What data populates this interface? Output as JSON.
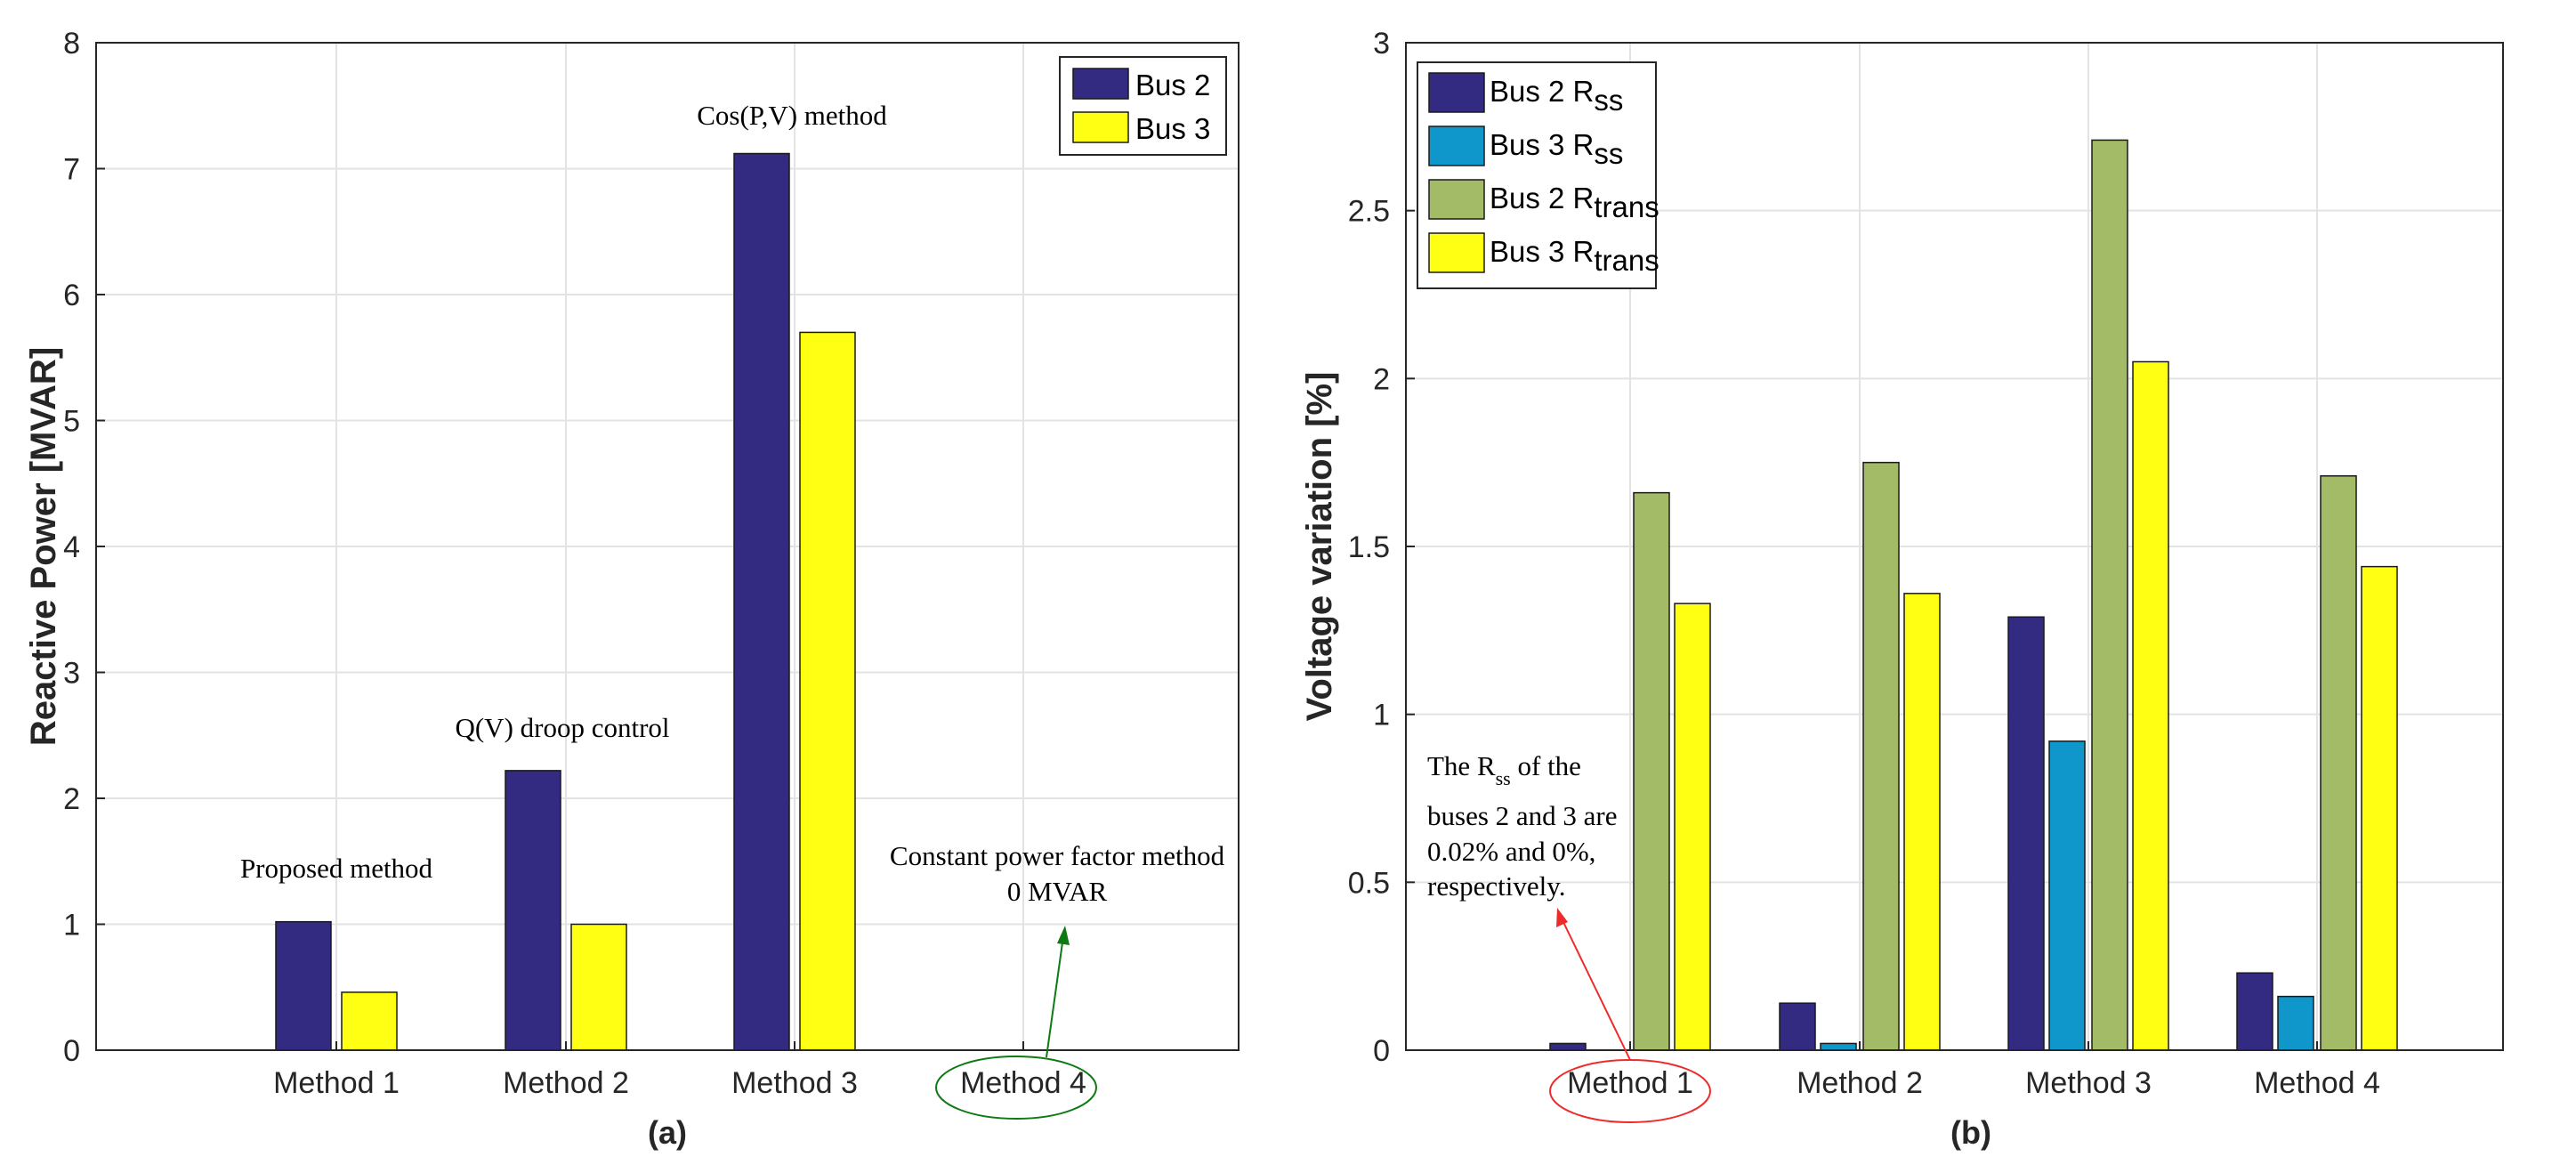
{
  "chart_data": [
    {
      "type": "bar",
      "panel_label": "(a)",
      "title": "",
      "xlabel": "",
      "ylabel": "Reactive Power [MVAR]",
      "ylim": [
        0,
        8
      ],
      "yticks": [
        "0",
        "1",
        "2",
        "3",
        "4",
        "5",
        "6",
        "7",
        "8"
      ],
      "grid": true,
      "categories": [
        "Method 1",
        "Method 2",
        "Method 3",
        "Method 4"
      ],
      "series": [
        {
          "name": "Bus 2",
          "color": "#332a82",
          "values": [
            1.02,
            2.22,
            7.12,
            0
          ]
        },
        {
          "name": "Bus 3",
          "color": "#ffff14",
          "values": [
            0.46,
            1.0,
            5.7,
            0
          ]
        }
      ],
      "legend": {
        "position": "top-right",
        "entries": [
          {
            "label": "Bus 2",
            "color": "#332a82"
          },
          {
            "label": "Bus 3",
            "color": "#ffff14"
          }
        ]
      },
      "annotations": {
        "proposed": "Proposed method",
        "qv": "Q(V) droop control",
        "cos": "Cos(P,V) method",
        "cpf_line1": "Constant power factor method",
        "cpf_line2": "0 MVAR"
      },
      "highlight_color": "#0d7a12"
    },
    {
      "type": "bar",
      "panel_label": "(b)",
      "title": "",
      "xlabel": "",
      "ylabel": "Voltage variation [%]",
      "ylim": [
        0,
        3
      ],
      "yticks": [
        "0",
        "0.5",
        "1",
        "1.5",
        "2",
        "2.5",
        "3"
      ],
      "grid": true,
      "categories": [
        "Method 1",
        "Method 2",
        "Method 3",
        "Method 4"
      ],
      "series": [
        {
          "name": "Bus 2 Rss",
          "color": "#332a82",
          "values": [
            0.02,
            0.14,
            1.29,
            0.23
          ]
        },
        {
          "name": "Bus 3 Rss",
          "color": "#0f97cc",
          "values": [
            0.0,
            0.02,
            0.92,
            0.16
          ]
        },
        {
          "name": "Bus 2 Rtrans",
          "color": "#a3bb67",
          "values": [
            1.66,
            1.75,
            2.71,
            1.71
          ]
        },
        {
          "name": "Bus 3 Rtrans",
          "color": "#ffff14",
          "values": [
            1.33,
            1.36,
            2.05,
            1.44
          ]
        }
      ],
      "legend": {
        "position": "top-left",
        "entries": [
          {
            "main": "Bus 2 R",
            "sub": "ss",
            "color": "#332a82"
          },
          {
            "main": "Bus 3 R",
            "sub": "ss",
            "color": "#0f97cc"
          },
          {
            "main": "Bus 2 R",
            "sub": "trans",
            "color": "#a3bb67"
          },
          {
            "main": "Bus 3 R",
            "sub": "trans",
            "color": "#ffff14"
          }
        ]
      },
      "annotation": {
        "line1_pre": "The R",
        "line1_sub": "ss",
        "line1_post": " of the",
        "line2": "buses 2 and 3 are",
        "line3": "0.02% and 0%,",
        "line4": "respectively."
      },
      "highlight_color": "#ee2b2b"
    }
  ]
}
